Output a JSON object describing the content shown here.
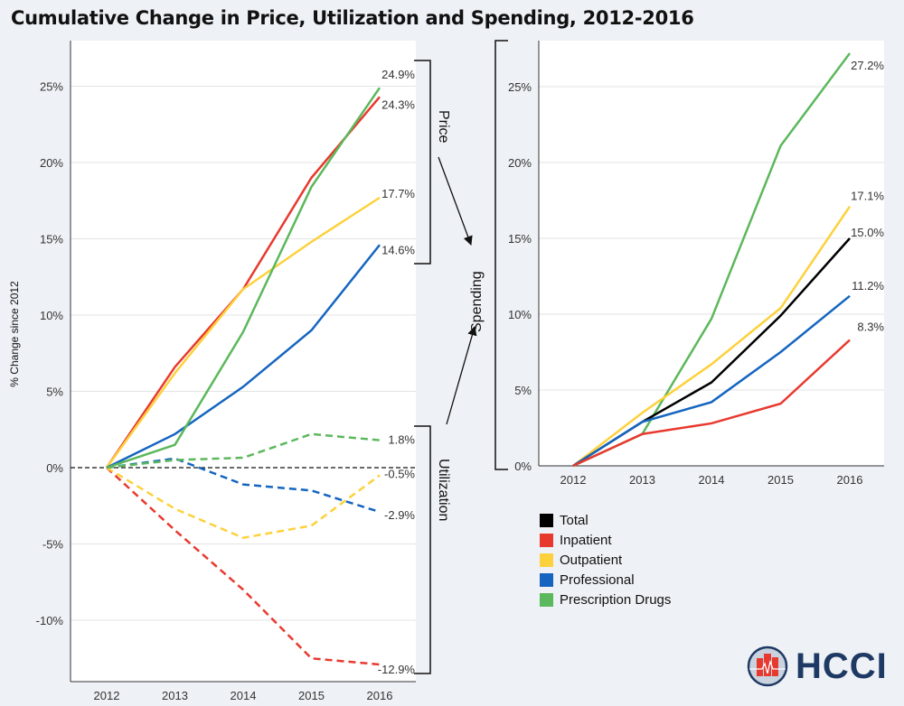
{
  "title": "Cumulative Change in Price, Utilization and Spending, 2012-2016",
  "annotations": {
    "price": "Price",
    "utilization": "Utilization",
    "spending": "Spending"
  },
  "colors": {
    "Total": "#000000",
    "Inpatient": "#e8392f",
    "Outpatient": "#fdd13c",
    "Professional": "#1565c0",
    "Prescription Drugs": "#5cb85c",
    "background": "#eef1f5"
  },
  "legend": {
    "placement": "below-right",
    "items": [
      "Total",
      "Inpatient",
      "Outpatient",
      "Professional",
      "Prescription Drugs"
    ]
  },
  "logo": {
    "text": "HCCI"
  },
  "chart_data": [
    {
      "type": "line",
      "ylabel": "% Change since 2012",
      "xlabel": "",
      "categories": [
        "2012",
        "2013",
        "2014",
        "2015",
        "2016"
      ],
      "ylim": [
        -13.5,
        28
      ],
      "yticks": [
        -10,
        -5,
        0,
        5,
        10,
        15,
        20,
        25
      ],
      "ytick_labels": [
        "-10%",
        "-5%",
        "0%",
        "5%",
        "10%",
        "15%",
        "20%",
        "25%"
      ],
      "grid": true,
      "series": [
        {
          "name": "Inpatient",
          "group": "Price",
          "style": "solid",
          "values": [
            0,
            6.6,
            11.7,
            19.0,
            24.3
          ],
          "end_label": "24.3%"
        },
        {
          "name": "Outpatient",
          "group": "Price",
          "style": "solid",
          "values": [
            0,
            6.2,
            11.7,
            14.8,
            17.7
          ],
          "end_label": "17.7%"
        },
        {
          "name": "Professional",
          "group": "Price",
          "style": "solid",
          "values": [
            0,
            2.2,
            5.3,
            9.0,
            14.6
          ],
          "end_label": "14.6%"
        },
        {
          "name": "Prescription Drugs",
          "group": "Price",
          "style": "solid",
          "values": [
            0,
            1.5,
            8.9,
            18.4,
            24.9
          ],
          "end_label": "24.9%"
        },
        {
          "name": "Inpatient",
          "group": "Utilization",
          "style": "dashed",
          "values": [
            0,
            -4.1,
            -8.0,
            -12.5,
            -12.9
          ],
          "end_label": "-12.9%"
        },
        {
          "name": "Outpatient",
          "group": "Utilization",
          "style": "dashed",
          "values": [
            0,
            -2.7,
            -4.6,
            -3.8,
            -0.5
          ],
          "end_label": "-0.5%"
        },
        {
          "name": "Professional",
          "group": "Utilization",
          "style": "dashed",
          "values": [
            0,
            0.6,
            -1.1,
            -1.5,
            -2.9
          ],
          "end_label": "-2.9%"
        },
        {
          "name": "Prescription Drugs",
          "group": "Utilization",
          "style": "dashed",
          "values": [
            0,
            0.5,
            0.65,
            2.2,
            1.8
          ],
          "end_label": "1.8%"
        }
      ]
    },
    {
      "type": "line",
      "xlabel": "",
      "ylabel": "",
      "categories": [
        "2012",
        "2013",
        "2014",
        "2015",
        "2016"
      ],
      "ylim": [
        0,
        28
      ],
      "yticks": [
        0,
        5,
        10,
        15,
        20,
        25
      ],
      "ytick_labels": [
        "0%",
        "5%",
        "10%",
        "15%",
        "20%",
        "25%"
      ],
      "grid": true,
      "series": [
        {
          "name": "Prescription Drugs",
          "values": [
            0,
            2.1,
            9.7,
            21.1,
            27.2
          ],
          "end_label": "27.2%"
        },
        {
          "name": "Outpatient",
          "values": [
            0,
            3.5,
            6.7,
            10.4,
            17.1
          ],
          "end_label": "17.1%"
        },
        {
          "name": "Total",
          "values": [
            0,
            2.9,
            5.5,
            9.9,
            15.0
          ],
          "end_label": "15.0%"
        },
        {
          "name": "Professional",
          "values": [
            0,
            2.9,
            4.2,
            7.5,
            11.2
          ],
          "end_label": "11.2%"
        },
        {
          "name": "Inpatient",
          "values": [
            0,
            2.1,
            2.8,
            4.1,
            8.3
          ],
          "end_label": "8.3%"
        }
      ]
    }
  ]
}
